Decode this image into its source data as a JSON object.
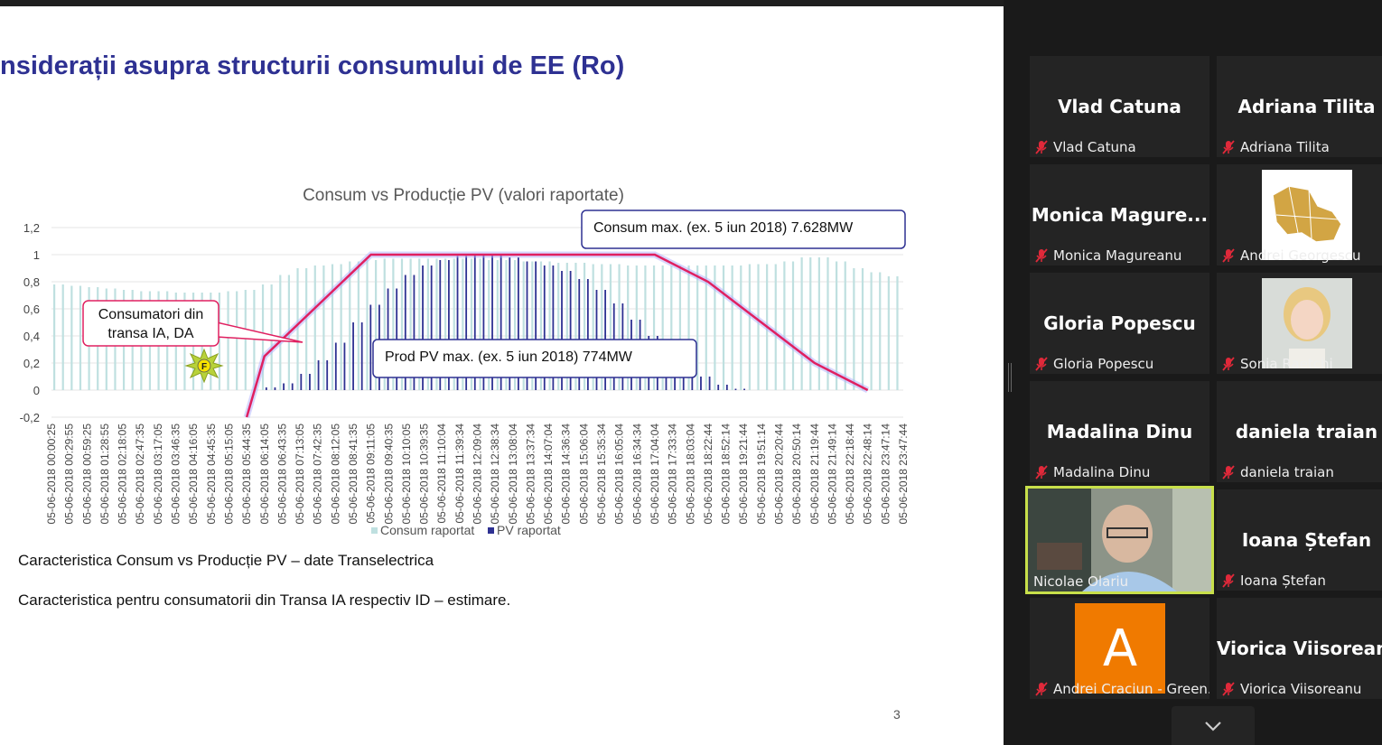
{
  "slide": {
    "title": "nsiderații asupra structurii consumului de EE (Ro)",
    "caption1": "Caracteristica  Consum vs Producție PV – date Transelectrica",
    "caption2": "Caracteristica pentru consumatorii din Transa IA respectiv ID – estimare.",
    "page_number": "3",
    "callouts": {
      "consum_max": "Consum max. (ex. 5 iun 2018)  7.628MW",
      "prod_pv_max": "Prod PV max. (ex. 5 iun 2018)     774MW",
      "consumatori_line1": "Consumatori din",
      "consumatori_line2": "transa IA, DA"
    },
    "marker_label": "F"
  },
  "chart_data": {
    "type": "bar",
    "title": "Consum vs Producție PV (valori raportate)",
    "ylim": [
      -0.2,
      1.2
    ],
    "yticks": [
      "1,2",
      "1",
      "0,8",
      "0,6",
      "0,4",
      "0,2",
      "0",
      "-0,2"
    ],
    "x_tick_labels": [
      "05-06-2018 00:00:25",
      "05-06-2018 00:29:55",
      "05-06-2018 00:59:25",
      "05-06-2018 01:28:55",
      "05-06-2018 02:18:05",
      "05-06-2018 02:47:35",
      "05-06-2018 03:17:05",
      "05-06-2018 03:46:35",
      "05-06-2018 04:16:05",
      "05-06-2018 04:45:35",
      "05-06-2018 05:15:05",
      "05-06-2018 05:44:35",
      "05-06-2018 06:14:05",
      "05-06-2018 06:43:35",
      "05-06-2018 07:13:05",
      "05-06-2018 07:42:35",
      "05-06-2018 08:12:05",
      "05-06-2018 08:41:35",
      "05-06-2018 09:11:05",
      "05-06-2018 09:40:35",
      "05-06-2018 10:10:05",
      "05-06-2018 10:39:35",
      "05-06-2018 11:10:04",
      "05-06-2018 11:39:34",
      "05-06-2018 12:09:04",
      "05-06-2018 12:38:34",
      "05-06-2018 13:08:04",
      "05-06-2018 13:37:34",
      "05-06-2018 14:07:04",
      "05-06-2018 14:36:34",
      "05-06-2018 15:06:04",
      "05-06-2018 15:35:34",
      "05-06-2018 16:05:04",
      "05-06-2018 16:34:34",
      "05-06-2018 17:04:04",
      "05-06-2018 17:33:34",
      "05-06-2018 18:03:04",
      "05-06-2018 18:22:44",
      "05-06-2018 18:52:14",
      "05-06-2018 19:21:44",
      "05-06-2018 19:51:14",
      "05-06-2018 20:20:44",
      "05-06-2018 20:50:14",
      "05-06-2018 21:19:44",
      "05-06-2018 21:49:14",
      "05-06-2018 22:18:44",
      "05-06-2018 22:48:14",
      "05-06-2018 23:47:14",
      "05-06-2018 23:47:44"
    ],
    "series": [
      {
        "name": "Consum raportat",
        "color": "#bfe0e0",
        "values": [
          0.78,
          0.77,
          0.76,
          0.75,
          0.74,
          0.73,
          0.73,
          0.72,
          0.72,
          0.72,
          0.73,
          0.74,
          0.78,
          0.85,
          0.9,
          0.92,
          0.93,
          0.95,
          0.96,
          0.97,
          0.97,
          0.97,
          0.97,
          0.97,
          0.97,
          0.96,
          0.96,
          0.95,
          0.95,
          0.94,
          0.94,
          0.93,
          0.93,
          0.92,
          0.92,
          0.92,
          0.92,
          0.92,
          0.92,
          0.92,
          0.93,
          0.93,
          0.95,
          0.98,
          0.98,
          0.95,
          0.9,
          0.87,
          0.84
        ]
      },
      {
        "name": "PV raportat",
        "color": "#2e3192",
        "values": [
          0,
          0,
          0,
          0,
          0,
          0,
          0,
          0,
          0,
          0,
          0,
          0,
          0.02,
          0.05,
          0.12,
          0.22,
          0.35,
          0.5,
          0.63,
          0.75,
          0.85,
          0.92,
          0.96,
          0.99,
          1.0,
          1.0,
          0.98,
          0.95,
          0.92,
          0.88,
          0.82,
          0.74,
          0.64,
          0.52,
          0.4,
          0.28,
          0.18,
          0.1,
          0.04,
          0.01,
          0,
          0,
          0,
          0,
          0,
          0,
          0,
          0,
          0
        ]
      }
    ],
    "overlay_line": {
      "name": "Consumatori din transa IA, DA",
      "color": "#e02060",
      "points": [
        [
          "05-06-2018 05:44:35",
          -0.2
        ],
        [
          "05-06-2018 06:14:05",
          0.25
        ],
        [
          "05-06-2018 09:11:05",
          1.0
        ],
        [
          "05-06-2018 17:04:04",
          1.0
        ],
        [
          "05-06-2018 18:22:44",
          0.8
        ],
        [
          "05-06-2018 19:51:14",
          0.5
        ],
        [
          "05-06-2018 21:19:44",
          0.2
        ],
        [
          "05-06-2018 22:48:14",
          0.0
        ]
      ]
    },
    "legend_placement": "bottom-center",
    "grid": true
  },
  "participants": [
    {
      "display": "Vlad Catuna",
      "tag": "Vlad Catuna",
      "muted": true,
      "kind": "name"
    },
    {
      "display": "Adriana Tilita",
      "tag": "Adriana Tilita",
      "muted": true,
      "kind": "name"
    },
    {
      "display": "Monica  Magure...",
      "tag": "Monica Magureanu",
      "muted": true,
      "kind": "name"
    },
    {
      "display": "",
      "tag": "Andrei Georgescu",
      "muted": true,
      "kind": "map-avatar"
    },
    {
      "display": "Gloria Popescu",
      "tag": "Gloria Popescu",
      "muted": true,
      "kind": "name"
    },
    {
      "display": "",
      "tag": "Sonia Raetchi",
      "muted": true,
      "kind": "photo"
    },
    {
      "display": "Madalina Dinu",
      "tag": "Madalina Dinu",
      "muted": true,
      "kind": "name"
    },
    {
      "display": "daniela traian",
      "tag": "daniela traian",
      "muted": true,
      "kind": "name"
    },
    {
      "display": "",
      "tag": "Nicolae Olariu",
      "muted": false,
      "kind": "video"
    },
    {
      "display": "Ioana Ștefan",
      "tag": "Ioana Ștefan",
      "muted": true,
      "kind": "name"
    },
    {
      "display": "A",
      "tag": "Andrei Craciun - Green...",
      "muted": true,
      "kind": "letter"
    },
    {
      "display": "Viorica Viisoreanu",
      "tag": "Viorica Viisoreanu",
      "muted": true,
      "kind": "name"
    }
  ],
  "colors": {
    "mute_red": "#e0293a",
    "active_speaker": "#c8e04a",
    "letter_avatar": "#f07a00"
  },
  "icons": {
    "mute": "microphone-muted-icon",
    "collapse": "chevron-down-icon"
  }
}
